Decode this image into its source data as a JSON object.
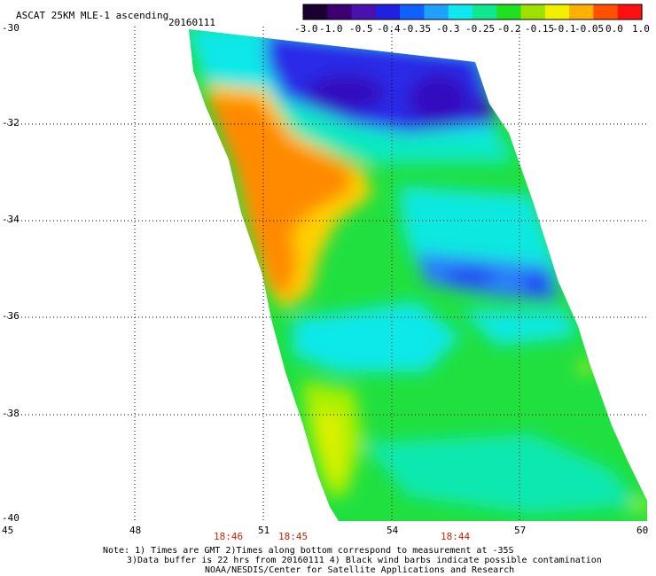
{
  "header": {
    "title": "ASCAT 25KM MLE-1 ascending",
    "date": "20160111"
  },
  "colorbar": {
    "labels": [
      "-3.0",
      "-1.0",
      "-0.5",
      "-0.4",
      "-0.35",
      "-0.3",
      "-0.25",
      "-0.2",
      "-0.15",
      "-0.1",
      "-0.05",
      "0.0",
      "1.0"
    ],
    "colors": [
      "#1a0030",
      "#3d0070",
      "#4a10b0",
      "#2020e0",
      "#1060ff",
      "#20a0ff",
      "#10e8f0",
      "#10e890",
      "#20e020",
      "#a0e000",
      "#f0f000",
      "#ffb000",
      "#ff5000",
      "#ff1010"
    ]
  },
  "map": {
    "lat_labels": [
      "-30",
      "-32",
      "-34",
      "-36",
      "-38",
      "-40"
    ],
    "lon_labels": [
      "45",
      "48",
      "51",
      "54",
      "57",
      "60"
    ],
    "time_labels": [
      "18:46",
      "18:45",
      "18:44"
    ]
  },
  "notes": {
    "line1": "Note: 1) Times are GMT 2)Times along bottom correspond to measurement at -35S",
    "line2": "3)Data buffer is 22 hrs from 20160111 4) Black wind barbs indicate possible contamination",
    "line3": "NOAA/NESDIS/Center for Satellite Applications and Research"
  }
}
